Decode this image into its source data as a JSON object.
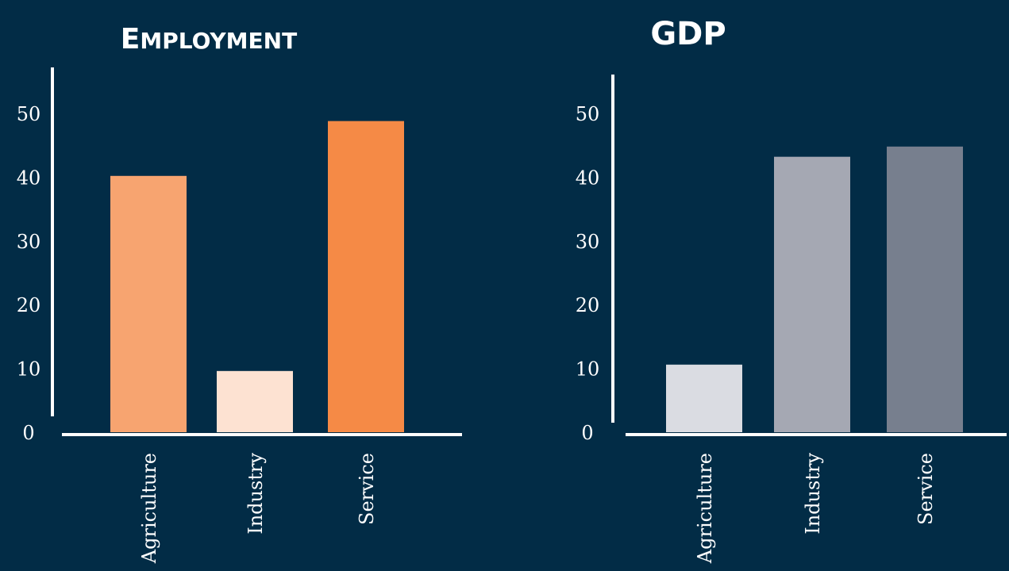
{
  "chart_data": [
    {
      "type": "bar",
      "title": "Employment",
      "categories": [
        "Agriculture",
        "Industry",
        "Service"
      ],
      "values": [
        40.2,
        9.6,
        48.8
      ],
      "colors": [
        "#f7a470",
        "#fde2d2",
        "#f58a46"
      ],
      "yticks": [
        0,
        10,
        20,
        30,
        40,
        50
      ],
      "ylim": [
        0,
        55
      ],
      "grid": false
    },
    {
      "type": "bar",
      "title": "GDP",
      "categories": [
        "Agriculture",
        "Industry",
        "Service"
      ],
      "values": [
        10.6,
        43.2,
        44.8
      ],
      "colors": [
        "#dadce2",
        "#a5a8b3",
        "#777f8e"
      ],
      "yticks": [
        0,
        10,
        20,
        30,
        40,
        50
      ],
      "ylim": [
        0,
        55
      ],
      "grid": false
    }
  ]
}
